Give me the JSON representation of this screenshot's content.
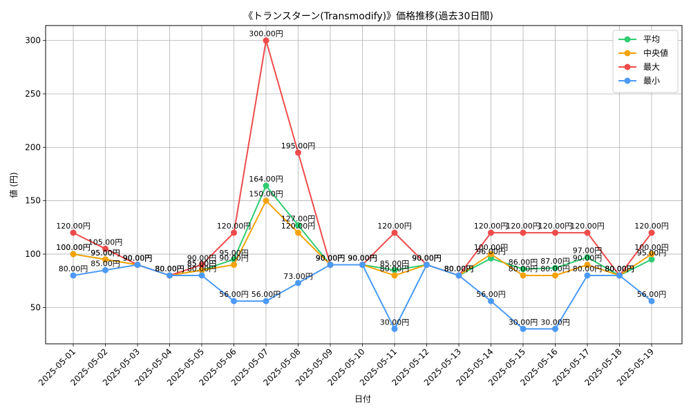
{
  "chart_data": {
    "type": "line",
    "title": "《トランスターン(Transmodify)》価格推移(過去30日間)",
    "xlabel": "日付",
    "ylabel": "値 (円)",
    "categories": [
      "2025-05-01",
      "2025-05-02",
      "2025-05-03",
      "2025-05-04",
      "2025-05-05",
      "2025-05-06",
      "2025-05-07",
      "2025-05-08",
      "2025-05-09",
      "2025-05-10",
      "2025-05-11",
      "2025-05-12",
      "2025-05-13",
      "2025-05-14",
      "2025-05-15",
      "2025-05-16",
      "2025-05-17",
      "2025-05-18",
      "2025-05-19"
    ],
    "y_ticks": [
      50,
      100,
      150,
      200,
      250,
      300
    ],
    "ylim": [
      16,
      314
    ],
    "grid": true,
    "legend_position": "top-right",
    "series": [
      {
        "name": "平均",
        "color": "#2ecc71",
        "values": [
          100,
          95,
          90,
          80,
          85,
          95,
          164,
          127,
          90,
          90,
          85,
          90,
          80,
          96,
          86,
          87,
          97,
          80,
          95
        ]
      },
      {
        "name": "中央値",
        "color": "#f5a20a",
        "values": [
          100,
          95,
          90,
          80,
          85,
          90,
          150,
          120,
          90,
          90,
          80,
          90,
          80,
          100,
          80,
          80,
          90,
          80,
          100
        ]
      },
      {
        "name": "最大",
        "color": "#ef4b4b",
        "values": [
          120,
          105,
          90,
          80,
          90,
          120,
          300,
          195,
          90,
          90,
          120,
          90,
          80,
          120,
          120,
          120,
          120,
          80,
          120
        ]
      },
      {
        "name": "最小",
        "color": "#4a9af5",
        "values": [
          80,
          85,
          90,
          80,
          80,
          56,
          56,
          73,
          90,
          90,
          30,
          90,
          80,
          56,
          30,
          30,
          80,
          80,
          56
        ]
      }
    ],
    "value_suffix": "円"
  }
}
